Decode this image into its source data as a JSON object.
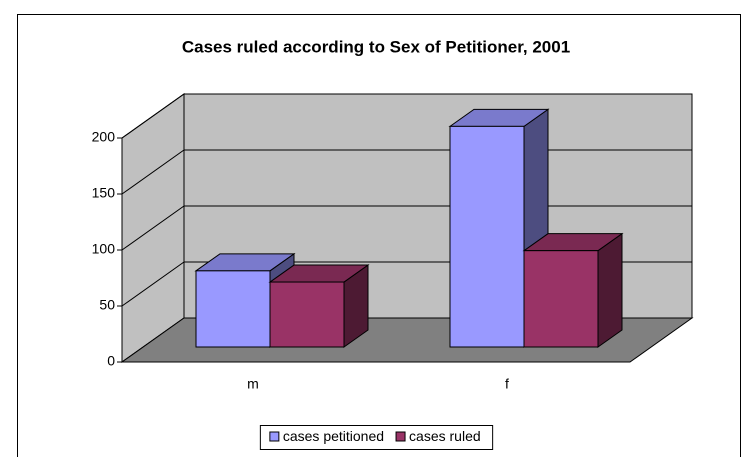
{
  "chart_data": {
    "type": "bar3d",
    "title": "Cases ruled according to Sex of Petitioner, 2001",
    "categories": [
      "m",
      "f"
    ],
    "series": [
      {
        "name": "cases petitioned",
        "color": "#9999ff",
        "values": [
          68,
          197
        ]
      },
      {
        "name": "cases ruled",
        "color": "#993366",
        "values": [
          58,
          86
        ]
      }
    ],
    "ylim": [
      0,
      200
    ],
    "yticks": [
      0,
      50,
      100,
      150,
      200
    ],
    "grid": true,
    "legend": "bottom"
  }
}
